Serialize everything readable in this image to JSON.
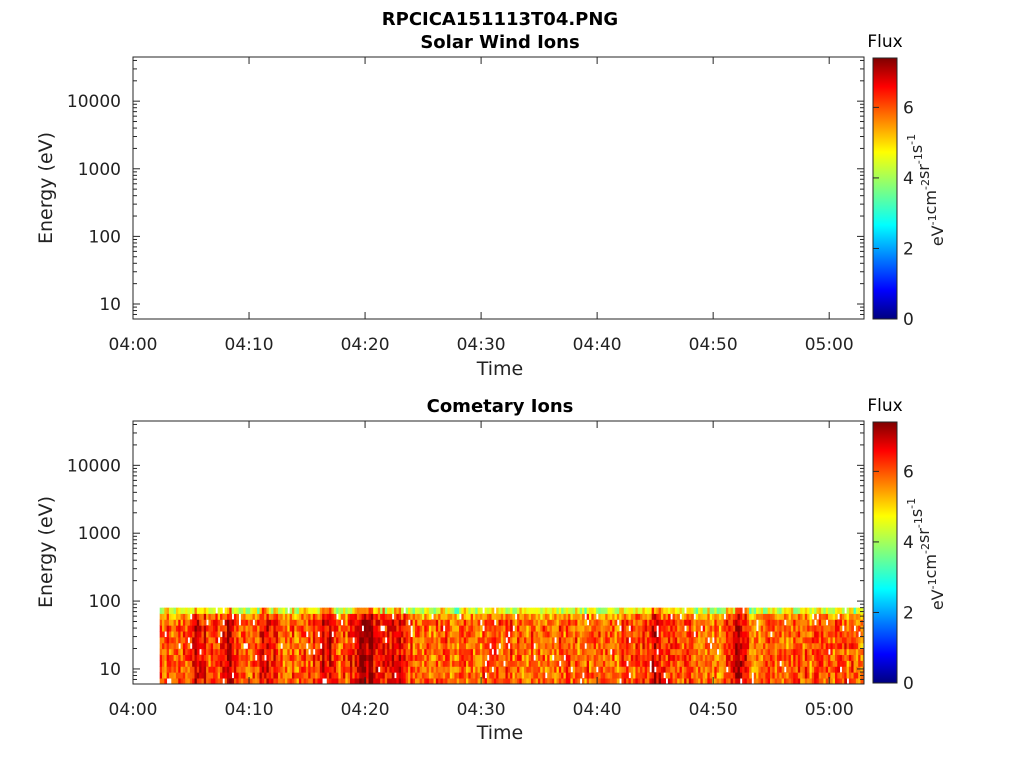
{
  "figure": {
    "filename": "RPCICA151113T04.PNG"
  },
  "colorbar": {
    "title": "Flux",
    "unit_label": "eV-1cm-2sr-1s-1",
    "unit_parts": [
      {
        "text": "eV",
        "sup": "-1"
      },
      {
        "text": "cm",
        "sup": "-2"
      },
      {
        "text": "sr",
        "sup": "-1"
      },
      {
        "text": "s",
        "sup": "-1"
      }
    ],
    "range": [
      0,
      7.4
    ],
    "ticks": [
      0,
      2,
      4,
      6
    ],
    "colormap": "jet",
    "colors": [
      "#00007f",
      "#0000ff",
      "#007fff",
      "#00ffff",
      "#7fff7f",
      "#ffff00",
      "#ff7f00",
      "#ff0000",
      "#7f0000"
    ]
  },
  "chart_data": [
    {
      "type": "heatmap",
      "title": "Solar Wind Ions",
      "xlabel": "Time",
      "ylabel": "Energy (eV)",
      "x_ticks": [
        "04:00",
        "04:10",
        "04:20",
        "04:30",
        "04:40",
        "04:50",
        "05:00"
      ],
      "x_range_minutes": [
        0,
        63
      ],
      "y_scale": "log",
      "y_ticks": [
        10,
        100,
        1000,
        10000
      ],
      "y_tick_labels": [
        "10",
        "100",
        "1000",
        "10000"
      ],
      "ylim": [
        6,
        45000
      ],
      "data": "empty"
    },
    {
      "type": "heatmap",
      "title": "Cometary Ions",
      "xlabel": "Time",
      "ylabel": "Energy (eV)",
      "x_ticks": [
        "04:00",
        "04:10",
        "04:20",
        "04:30",
        "04:40",
        "04:50",
        "05:00"
      ],
      "x_range_minutes": [
        0,
        63
      ],
      "y_scale": "log",
      "y_ticks": [
        10,
        100,
        1000,
        10000
      ],
      "y_tick_labels": [
        "10",
        "100",
        "1000",
        "10000"
      ],
      "ylim": [
        6,
        45000
      ],
      "data_time_range_minutes": [
        2.3,
        63
      ],
      "data_energy_range_eV": [
        6,
        80
      ],
      "typical_log_flux": [
        4.5,
        6.5
      ],
      "peak_log_flux_times_minutes": [
        5.5,
        8,
        11.5,
        16.5,
        19.5,
        20.5,
        22.5,
        45,
        52
      ]
    }
  ]
}
